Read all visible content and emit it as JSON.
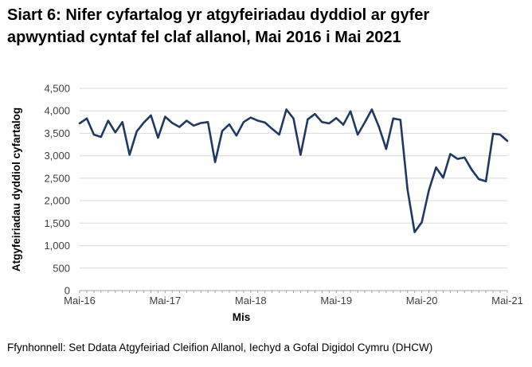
{
  "title": "Siart 6: Nifer cyfartalog yr atgyfeiriadau dyddiol ar gyfer apwyntiad cyntaf fel claf allanol, Mai 2016 i Mai 2021",
  "source": "Ffynhonnell: Set Ddata Atgyfeiriad Cleifion Allanol, Iechyd a Gofal Digidol Cymru (DHCW)",
  "chart_data": {
    "type": "line",
    "title": "Siart 6: Nifer cyfartalog yr atgyfeiriadau dyddiol ar gyfer apwyntiad cyntaf fel claf allanol, Mai 2016 i Mai 2021",
    "xlabel": "Mis",
    "ylabel": "Atgyfeiriadau dyddiol cyfartalog",
    "x_start": "Mai-16",
    "x_end": "Mai-21",
    "x_frequency": "monthly",
    "xtick_labels": [
      "Mai-16",
      "Mai-17",
      "Mai-18",
      "Mai-19",
      "Mai-20",
      "Mai-21"
    ],
    "xtick_month_index": [
      0,
      12,
      24,
      36,
      48,
      60
    ],
    "ylim": [
      0,
      4500
    ],
    "ytick_values": [
      0,
      500,
      1000,
      1500,
      2000,
      2500,
      3000,
      3500,
      4000,
      4500
    ],
    "ytick_labels": [
      "0",
      "500",
      "1,000",
      "1,500",
      "2,000",
      "2,500",
      "3,000",
      "3,500",
      "4,000",
      "4,500"
    ],
    "grid": true,
    "legend": "none",
    "line_color": "#1f3864",
    "series": [
      {
        "name": "Atgyfeiriadau dyddiol cyfartalog",
        "values": [
          3720,
          3830,
          3470,
          3420,
          3780,
          3520,
          3750,
          3020,
          3540,
          3740,
          3900,
          3400,
          3870,
          3730,
          3640,
          3780,
          3670,
          3730,
          3750,
          2860,
          3550,
          3700,
          3450,
          3750,
          3850,
          3780,
          3740,
          3600,
          3470,
          4030,
          3830,
          3020,
          3810,
          3930,
          3750,
          3720,
          3840,
          3690,
          3990,
          3470,
          3740,
          4030,
          3640,
          3150,
          3830,
          3800,
          2250,
          1300,
          1520,
          2230,
          2740,
          2510,
          3040,
          2930,
          2960,
          2690,
          2480,
          2430,
          3490,
          3470,
          3330
        ]
      }
    ]
  }
}
